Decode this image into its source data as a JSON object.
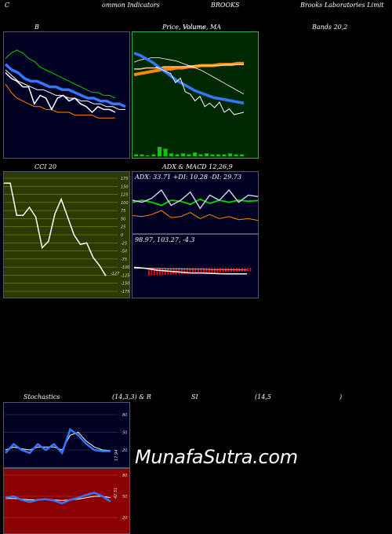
{
  "header": {
    "left": "C",
    "indicators": "ommon  Indicators",
    "symbol": "BROOKS",
    "company": "Brooks Laboratories Limit"
  },
  "titles": {
    "bb": "B",
    "price_volume": "Price,  Volume,  MA",
    "price_overlay": "Volume",
    "bands": "Bands 20,2",
    "cci": "CCI 20",
    "adx_macd": "ADX  & MACD 12,26,9",
    "stoch": "Stochastics",
    "stoch_params": "(14,3,3) & R",
    "rsi": "SI",
    "rsi_params": "(14,5",
    "rsi_close": ")"
  },
  "cci_labels": {
    "ticks": [
      "175",
      "150",
      "125",
      "100",
      "75",
      "50",
      "25",
      "0",
      "-25",
      "-50",
      "-75",
      "-100",
      "-125",
      "-150",
      "-175"
    ],
    "last": "-127"
  },
  "adx_labels": {
    "line": "ADX: 33.71  +DI: 10.28  -DI: 29.73"
  },
  "macd_labels": {
    "line": "98.97,  103.27,  -4.3"
  },
  "stoch_labels": {
    "ticks": [
      "80",
      "50",
      "20"
    ],
    "last": "17.94"
  },
  "rsi_labels": {
    "ticks": [
      "80",
      "50",
      "20"
    ],
    "last": "42.51"
  },
  "watermark": "MunafaSutra.com",
  "colors": {
    "bb_bg": "#000022",
    "pv_bg": "#002800",
    "cci_bg": "#2a3a00",
    "adx_bg": "#000022",
    "stoch_bg": "#000022",
    "rsi_bg": "#8b0000",
    "blue": "#3377ff",
    "green": "#00cc00",
    "orange": "#ff8800",
    "red": "#ff0000"
  },
  "chart_data": [
    {
      "type": "line",
      "name": "bollinger",
      "series": [
        {
          "values": [
            84,
            86,
            87,
            86,
            84,
            83,
            81,
            80,
            79,
            78,
            77,
            76,
            75,
            74,
            73,
            72,
            72,
            71,
            71,
            70
          ]
        },
        {
          "values": [
            82,
            80,
            79,
            77,
            76,
            76,
            75,
            74,
            74,
            73,
            73,
            72,
            71,
            70,
            70,
            69,
            69,
            68,
            68,
            67
          ]
        },
        {
          "values": [
            80,
            78,
            76,
            75,
            74,
            73,
            73,
            72,
            71,
            71,
            70,
            70,
            69,
            69,
            68,
            68,
            67,
            67,
            66,
            66
          ]
        },
        {
          "values": [
            75,
            72,
            70,
            69,
            68,
            67,
            67,
            66,
            66,
            65,
            65,
            65,
            64,
            64,
            64,
            64,
            63,
            63,
            63,
            63
          ]
        },
        {
          "values": [
            79,
            77,
            76,
            74,
            74,
            68,
            71,
            70,
            66,
            70,
            71,
            69,
            70,
            68,
            67,
            65,
            67,
            66,
            66,
            65
          ]
        }
      ]
    },
    {
      "type": "line",
      "name": "price_volume_ma",
      "series": [
        {
          "values": [
            92,
            90,
            87,
            84,
            80,
            76,
            72,
            68,
            65,
            62,
            59,
            57,
            55,
            53,
            52,
            51,
            50,
            49,
            48
          ]
        },
        {
          "values": [
            73,
            74,
            75,
            76,
            77,
            78,
            78,
            79,
            79,
            80,
            80,
            81,
            81,
            81,
            82,
            82,
            82,
            83,
            83
          ]
        },
        {
          "values": [
            78,
            78,
            79,
            79,
            79,
            80,
            80,
            80,
            80,
            80,
            81,
            81,
            81,
            81,
            81,
            82,
            82,
            82,
            82
          ]
        },
        {
          "values": [
            84,
            86,
            87,
            88,
            88,
            87,
            86,
            85,
            83,
            81,
            79,
            77,
            74,
            71,
            68,
            65,
            62,
            59,
            56
          ]
        },
        {
          "values": [
            80,
            78,
            76,
            74,
            66,
            70,
            58,
            56,
            50,
            54,
            45,
            48,
            44,
            49,
            40,
            43,
            38,
            39,
            40
          ]
        },
        {
          "values": [
            2,
            2,
            1,
            2,
            10,
            8,
            3,
            2,
            3,
            2,
            4,
            2,
            3,
            2,
            2,
            2,
            3,
            2,
            2
          ]
        }
      ]
    },
    {
      "type": "line",
      "name": "cci",
      "series": [
        {
          "values": [
            160,
            160,
            60,
            60,
            85,
            55,
            -40,
            -20,
            65,
            110,
            55,
            0,
            -30,
            -25,
            -70,
            -95,
            -127
          ]
        }
      ]
    },
    {
      "type": "line",
      "name": "adx",
      "series": [
        {
          "values": [
            30,
            28,
            32,
            40,
            25,
            30,
            38,
            22,
            35,
            30,
            40,
            28,
            35,
            33.71
          ]
        },
        {
          "values": [
            15,
            14,
            16,
            20,
            13,
            14,
            18,
            12,
            16,
            12,
            14,
            11,
            12,
            10.28
          ]
        },
        {
          "values": [
            28,
            30,
            28,
            25,
            30,
            29,
            26,
            31,
            27,
            30,
            28,
            30,
            29,
            29.73
          ]
        }
      ]
    },
    {
      "type": "line",
      "name": "macd",
      "series": [
        {
          "values": [
            106,
            105,
            103,
            102,
            101,
            100,
            100,
            99.5,
            99,
            99,
            98.97
          ]
        },
        {
          "values": [
            105,
            105,
            105,
            104.5,
            104.5,
            104,
            104,
            103.5,
            103.5,
            103.3,
            103.27
          ]
        },
        {
          "values": [
            1,
            0,
            -2,
            -3,
            -3.5,
            -4,
            -4,
            -4.2,
            -4.3,
            -4.3,
            -4.3
          ]
        }
      ]
    },
    {
      "type": "line",
      "name": "stochastics",
      "series": [
        {
          "values": [
            15,
            30,
            20,
            15,
            30,
            20,
            30,
            15,
            55,
            45,
            30,
            20,
            18,
            17.94
          ]
        },
        {
          "values": [
            20,
            25,
            22,
            20,
            25,
            25,
            25,
            20,
            45,
            50,
            35,
            25,
            20,
            19
          ]
        }
      ]
    },
    {
      "type": "line",
      "name": "rsi",
      "series": [
        {
          "values": [
            48,
            50,
            45,
            42,
            45,
            46,
            44,
            40,
            45,
            48,
            52,
            55,
            50,
            42.51
          ]
        },
        {
          "values": [
            47,
            47,
            46,
            45,
            45,
            46,
            45,
            44,
            45,
            46,
            48,
            50,
            50,
            48
          ]
        }
      ]
    }
  ]
}
